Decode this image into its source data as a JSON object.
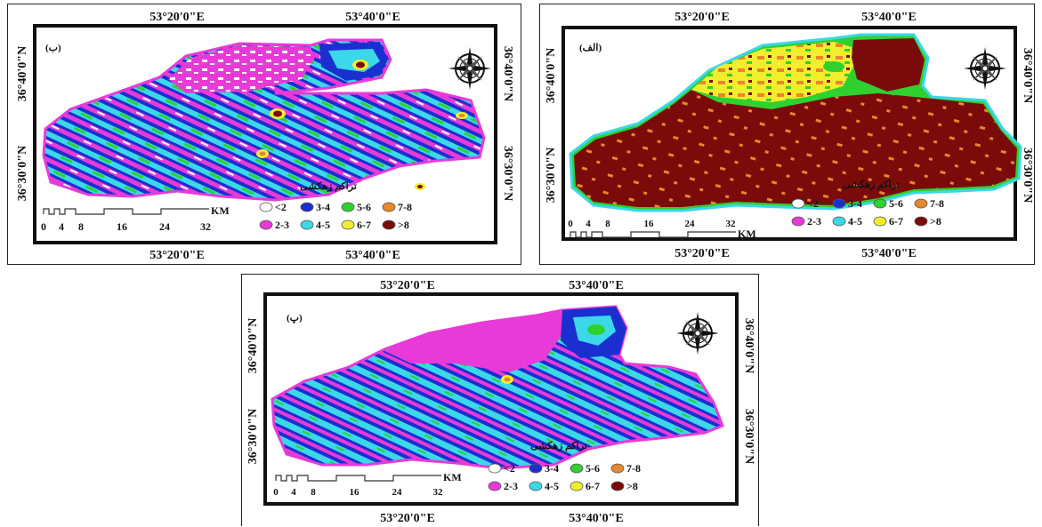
{
  "maps": {
    "b": {
      "panel_label": "(ب)",
      "lon_left": "53°20'0\"E",
      "lon_right": "53°40'0\"E",
      "lat_top": "36°40'0\"N",
      "lat_bottom": "36°30'0\"N",
      "legend_title": "تراکم زهکشی",
      "scale_unit": "KM",
      "scale_ticks": [
        "0",
        "4",
        "8",
        "16",
        "24",
        "32"
      ]
    },
    "alef": {
      "panel_label": "(الف)",
      "lon_left": "53°20'0\"E",
      "lon_right": "53°40'0\"E",
      "lat_top": "36°40'0\"N",
      "lat_bottom": "36°30'0\"N",
      "legend_title": "تراکم زهکشی",
      "scale_unit": "KM",
      "scale_ticks": [
        "0",
        "4",
        "8",
        "16",
        "24",
        "32"
      ]
    },
    "p": {
      "panel_label": "(پ)",
      "lon_left": "53°20'0\"E",
      "lon_right": "53°40'0\"E",
      "lat_top": "36°40'0\"N",
      "lat_bottom": "36°30'0\"N",
      "legend_title": "تراکم زهکشی",
      "scale_unit": "KM",
      "scale_ticks": [
        "0",
        "4",
        "8",
        "16",
        "24",
        "32"
      ]
    }
  },
  "legend": {
    "row1": [
      {
        "label": "<2",
        "color": "#ffffff"
      },
      {
        "label": "3-4",
        "color": "#1b2fd0"
      },
      {
        "label": "5-6",
        "color": "#2fd12f"
      },
      {
        "label": "7-8",
        "color": "#e8872b"
      }
    ],
    "row2": [
      {
        "label": "2-3",
        "color": "#e83ad8"
      },
      {
        "label": "4-5",
        "color": "#3ad8e8"
      },
      {
        "label": "6-7",
        "color": "#f2ee2e"
      },
      {
        "label": ">8",
        "color": "#7b0b0b"
      }
    ]
  },
  "colors": {
    "dark_red": "#7b0b0b",
    "magenta": "#e83ad8",
    "blue": "#1b2fd0",
    "cyan": "#3ad8e8",
    "green": "#2fd12f",
    "yellow": "#f2ee2e",
    "orange": "#e8872b"
  },
  "icons": {
    "compass": "north-arrow-compass-rose-icon"
  }
}
